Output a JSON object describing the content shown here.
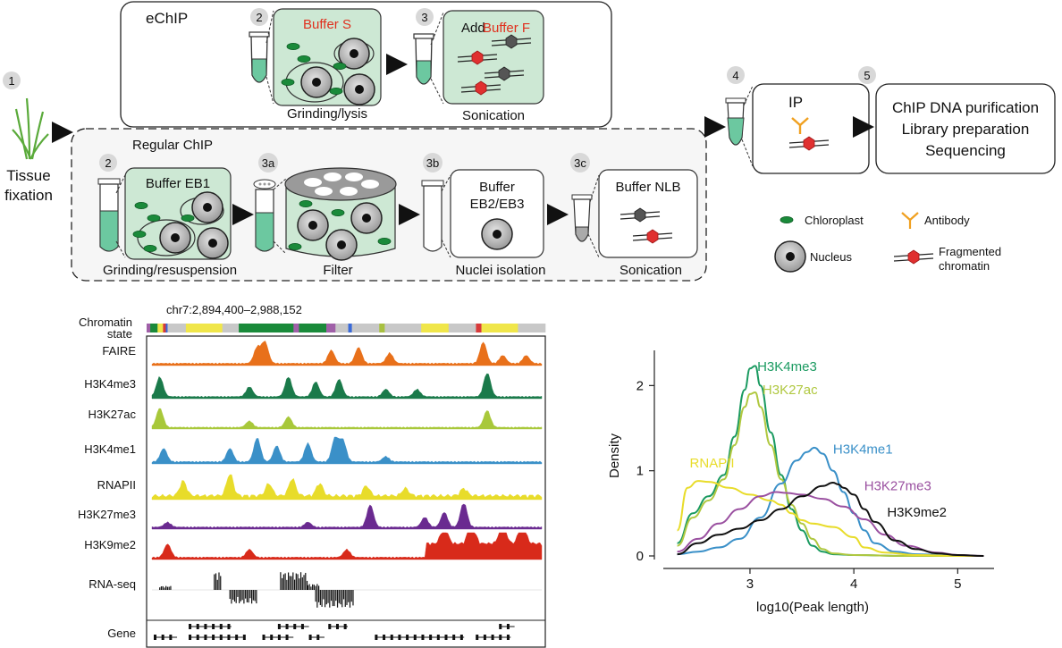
{
  "workflow": {
    "step1": {
      "badge": "1",
      "label_line1": "Tissue",
      "label_line2": "fixation"
    },
    "echip": {
      "title": "eChIP",
      "step2": {
        "badge": "2",
        "buffer": "Buffer S",
        "caption": "Grinding/lysis"
      },
      "step3": {
        "badge": "3",
        "prefix": "Add",
        "buffer": "Buffer F",
        "caption": "Sonication"
      }
    },
    "regular": {
      "title": "Regular ChIP",
      "step2": {
        "badge": "2",
        "buffer": "Buffer EB1",
        "caption": "Grinding/resuspension"
      },
      "step3a": {
        "badge": "3a",
        "caption": "Filter"
      },
      "step3b": {
        "badge": "3b",
        "buffer_line1": "Buffer",
        "buffer_line2": "EB2/EB3",
        "caption": "Nuclei isolation"
      },
      "step3c": {
        "badge": "3c",
        "buffer": "Buffer NLB",
        "caption": "Sonication"
      }
    },
    "step4": {
      "badge": "4",
      "label": "IP"
    },
    "step5": {
      "badge": "5",
      "line1": "ChIP DNA purification",
      "line2": "Library preparation",
      "line3": "Sequencing"
    },
    "legend": {
      "chloroplast": "Chloroplast",
      "nucleus": "Nucleus",
      "antibody": "Antibody",
      "chromatin_line1": "Fragmented",
      "chromatin_line2": "chromatin"
    }
  },
  "browser": {
    "region": "chr7:2,894,400–2,988,152",
    "chromatin_state_line1": "Chromatin",
    "chromatin_state_line2": "state",
    "state_colors": {
      "green": "#1a8a3a",
      "yellow": "#f0e64a",
      "gray": "#c8c8c8",
      "purple": "#a060a8",
      "red": "#d83a3a",
      "blue": "#3a6ad8",
      "olive": "#a8c040"
    },
    "tracks": [
      {
        "name": "FAIRE",
        "color": "#e8701a"
      },
      {
        "name": "H3K4me3",
        "color": "#1a7a4a"
      },
      {
        "name": "H3K27ac",
        "color": "#a8c83a"
      },
      {
        "name": "H3K4me1",
        "color": "#3a90c8"
      },
      {
        "name": "RNAPII",
        "color": "#e8dc2a"
      },
      {
        "name": "H3K27me3",
        "color": "#6a2a90"
      },
      {
        "name": "H3K9me2",
        "color": "#d82a1a"
      },
      {
        "name": "RNA-seq",
        "color": "#111111"
      },
      {
        "name": "Gene",
        "color": "#111111"
      }
    ]
  },
  "chart_data": {
    "type": "line",
    "xlabel": "log10(Peak length)",
    "ylabel": "Density",
    "xlim": [
      2.2,
      5.35
    ],
    "ylim": [
      0,
      2.35
    ],
    "xticks": [
      "3",
      "4",
      "5"
    ],
    "yticks": [
      "0",
      "1",
      "2"
    ],
    "grid": false,
    "series": [
      {
        "name": "H3K4me3",
        "color": "#1a9a60",
        "x": [
          2.3,
          2.45,
          2.6,
          2.75,
          2.85,
          2.95,
          3.0,
          3.05,
          3.1,
          3.2,
          3.3,
          3.4,
          3.5,
          3.6,
          3.7,
          3.8,
          4.0,
          4.5,
          5.0,
          5.25
        ],
        "y": [
          0.15,
          0.5,
          0.7,
          0.95,
          1.4,
          1.95,
          2.2,
          2.23,
          2.0,
          1.45,
          0.95,
          0.55,
          0.3,
          0.12,
          0.05,
          0.02,
          0.01,
          0.0,
          0.0,
          0.0
        ]
      },
      {
        "name": "H3K27ac",
        "color": "#b0c840",
        "x": [
          2.3,
          2.45,
          2.6,
          2.75,
          2.85,
          2.95,
          3.0,
          3.05,
          3.1,
          3.2,
          3.3,
          3.4,
          3.5,
          3.6,
          3.7,
          3.8,
          4.0,
          4.5,
          5.0,
          5.25
        ],
        "y": [
          0.12,
          0.45,
          0.65,
          0.9,
          1.3,
          1.75,
          1.9,
          1.92,
          1.75,
          1.3,
          0.9,
          0.6,
          0.38,
          0.2,
          0.08,
          0.03,
          0.01,
          0.0,
          0.0,
          0.0
        ]
      },
      {
        "name": "H3K4me1",
        "color": "#3a90c8",
        "x": [
          2.3,
          2.5,
          2.7,
          2.9,
          3.1,
          3.3,
          3.45,
          3.55,
          3.62,
          3.7,
          3.8,
          3.9,
          4.0,
          4.1,
          4.2,
          4.4,
          4.6,
          5.0,
          5.25
        ],
        "y": [
          0.02,
          0.05,
          0.1,
          0.2,
          0.45,
          0.85,
          1.12,
          1.22,
          1.27,
          1.2,
          1.0,
          0.75,
          0.5,
          0.3,
          0.15,
          0.05,
          0.02,
          0.0,
          0.0
        ]
      },
      {
        "name": "RNAPII",
        "color": "#e8dc2a",
        "x": [
          2.3,
          2.4,
          2.5,
          2.6,
          2.8,
          3.0,
          3.2,
          3.3,
          3.4,
          3.5,
          3.6,
          3.8,
          4.0,
          4.1,
          4.3,
          4.6,
          5.0,
          5.25
        ],
        "y": [
          0.3,
          0.8,
          0.88,
          0.87,
          0.8,
          0.72,
          0.65,
          0.6,
          0.5,
          0.42,
          0.38,
          0.34,
          0.22,
          0.1,
          0.04,
          0.01,
          0.0,
          0.0
        ]
      },
      {
        "name": "H3K27me3",
        "color": "#9a50a0",
        "x": [
          2.3,
          2.5,
          2.7,
          2.9,
          3.1,
          3.25,
          3.35,
          3.5,
          3.7,
          3.9,
          4.1,
          4.3,
          4.5,
          4.8,
          5.0,
          5.25
        ],
        "y": [
          0.05,
          0.2,
          0.38,
          0.55,
          0.7,
          0.75,
          0.74,
          0.72,
          0.67,
          0.58,
          0.43,
          0.25,
          0.12,
          0.04,
          0.01,
          0.0
        ]
      },
      {
        "name": "H3K9me2",
        "color": "#111111",
        "x": [
          2.3,
          2.5,
          2.7,
          2.9,
          3.1,
          3.3,
          3.5,
          3.7,
          3.8,
          3.85,
          3.9,
          4.0,
          4.1,
          4.2,
          4.4,
          4.6,
          4.8,
          5.0,
          5.25
        ],
        "y": [
          0.02,
          0.15,
          0.25,
          0.32,
          0.42,
          0.55,
          0.7,
          0.82,
          0.86,
          0.84,
          0.8,
          0.72,
          0.55,
          0.4,
          0.18,
          0.08,
          0.03,
          0.01,
          0.0
        ]
      }
    ],
    "labels": [
      {
        "text": "H3K4me3",
        "x": 3.07,
        "y": 2.17,
        "color": "#1a9a60"
      },
      {
        "text": "H3K27ac",
        "x": 3.12,
        "y": 1.9,
        "color": "#b0c840"
      },
      {
        "text": "H3K4me1",
        "x": 3.8,
        "y": 1.2,
        "color": "#3a90c8"
      },
      {
        "text": "RNAPII",
        "x": 2.42,
        "y": 1.04,
        "color": "#e8dc2a"
      },
      {
        "text": "H3K27me3",
        "x": 4.1,
        "y": 0.77,
        "color": "#9a50a0"
      },
      {
        "text": "H3K9me2",
        "x": 4.32,
        "y": 0.46,
        "color": "#111111"
      }
    ]
  }
}
